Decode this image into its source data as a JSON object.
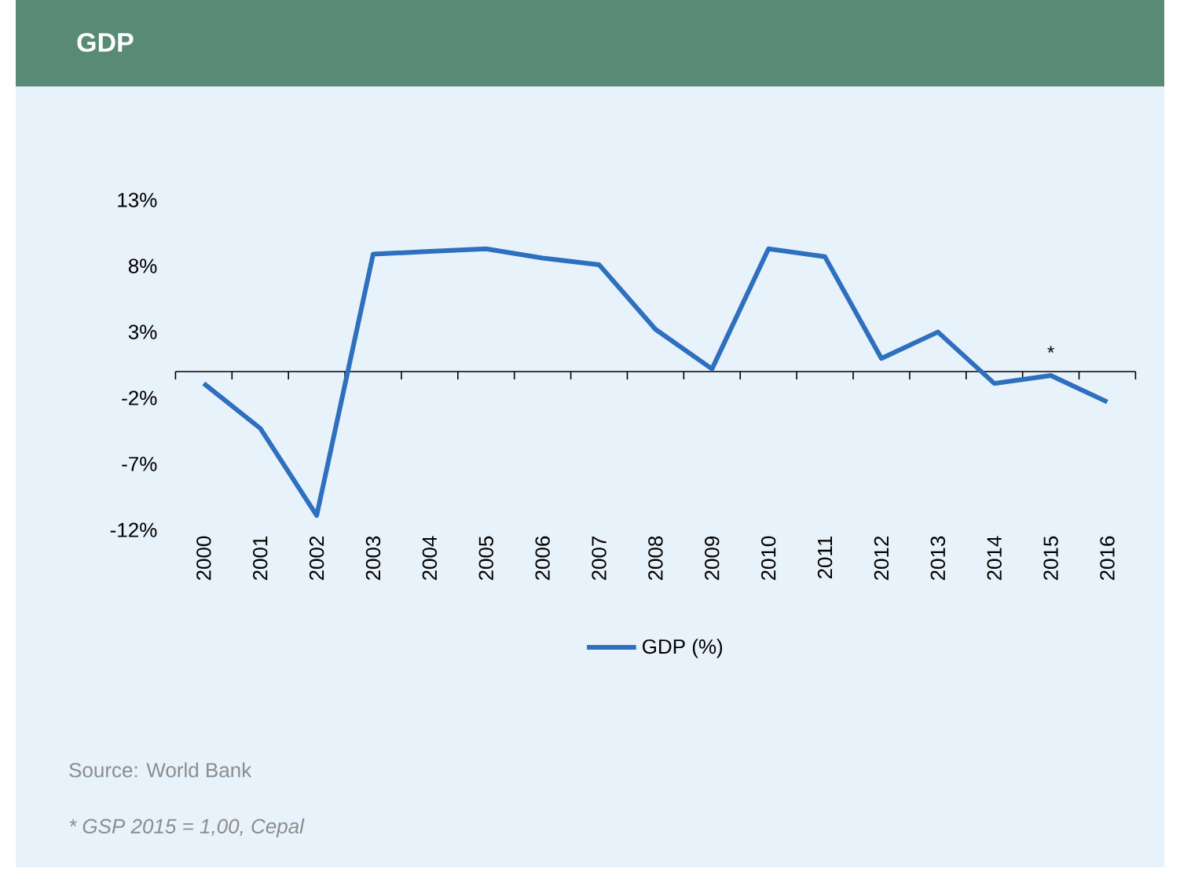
{
  "chart_data": {
    "type": "line",
    "title": "GDP",
    "categories": [
      "2000",
      "2001",
      "2002",
      "2003",
      "2004",
      "2005",
      "2006",
      "2007",
      "2008",
      "2009",
      "2010",
      "2011",
      "2012",
      "2013",
      "2014",
      "2015",
      "2016"
    ],
    "series": [
      {
        "name": "GDP (%)",
        "color": "#2e6fbe",
        "values": [
          -0.9,
          -4.3,
          -10.9,
          8.9,
          9.1,
          9.3,
          8.6,
          8.1,
          3.2,
          0.2,
          9.3,
          8.7,
          1.0,
          3.0,
          -0.9,
          -0.3,
          -2.3
        ]
      }
    ],
    "ylim": [
      -12,
      13
    ],
    "yticks": [
      {
        "value": 13,
        "label": "13%"
      },
      {
        "value": 8,
        "label": "8%"
      },
      {
        "value": 3,
        "label": "3%"
      },
      {
        "value": -2,
        "label": "-2%"
      },
      {
        "value": -7,
        "label": "-7%"
      },
      {
        "value": -12,
        "label": "-12%"
      }
    ],
    "legend": "bottom",
    "marker": "none",
    "line_style": "solid",
    "annotations": [
      {
        "text": "*",
        "x": "2015",
        "y": -0.3
      },
      "Source: World Bank",
      "* GSP 2015 = 1,00, Cepal"
    ]
  }
}
